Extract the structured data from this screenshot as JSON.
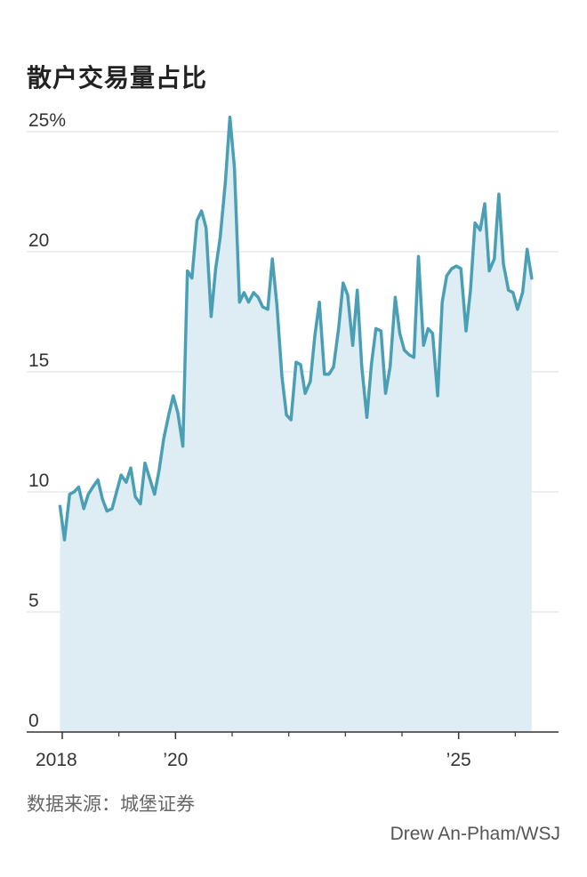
{
  "title": "散户交易量占比",
  "source": "数据来源：城堡证券",
  "credit": "Drew An-Pham/WSJ",
  "colors": {
    "line": "#4a9fb5",
    "area": "#deedf3",
    "grid": "#dddddd",
    "axis": "#333333"
  },
  "chart_data": {
    "type": "area",
    "title": "散户交易量占比",
    "xlabel": "",
    "ylabel": "",
    "ylim": [
      0,
      25
    ],
    "yticks": [
      {
        "value": 25,
        "label": "25%"
      },
      {
        "value": 20,
        "label": "20"
      },
      {
        "value": 15,
        "label": "15"
      },
      {
        "value": 10,
        "label": "10"
      },
      {
        "value": 5,
        "label": "5"
      },
      {
        "value": 0,
        "label": "0"
      }
    ],
    "xlim": [
      2018,
      2026.67
    ],
    "xticks": [
      {
        "value": 2018,
        "label": "2018"
      },
      {
        "value": 2020,
        "label": "’20"
      },
      {
        "value": 2025,
        "label": "’25"
      }
    ],
    "minor_xticks": [
      2019,
      2021,
      2022,
      2023,
      2024,
      2026
    ],
    "grid": true,
    "series": [
      {
        "values": [
          [
            2017.96,
            9.4
          ],
          [
            2018.04,
            8.0
          ],
          [
            2018.13,
            9.9
          ],
          [
            2018.21,
            10.0
          ],
          [
            2018.29,
            10.2
          ],
          [
            2018.38,
            9.3
          ],
          [
            2018.46,
            9.9
          ],
          [
            2018.54,
            10.2
          ],
          [
            2018.63,
            10.5
          ],
          [
            2018.71,
            9.7
          ],
          [
            2018.79,
            9.2
          ],
          [
            2018.88,
            9.3
          ],
          [
            2018.96,
            10.0
          ],
          [
            2019.04,
            10.7
          ],
          [
            2019.13,
            10.4
          ],
          [
            2019.21,
            11.0
          ],
          [
            2019.29,
            9.8
          ],
          [
            2019.38,
            9.5
          ],
          [
            2019.46,
            11.2
          ],
          [
            2019.54,
            10.6
          ],
          [
            2019.63,
            9.9
          ],
          [
            2019.71,
            10.9
          ],
          [
            2019.79,
            12.2
          ],
          [
            2019.88,
            13.2
          ],
          [
            2019.96,
            14.0
          ],
          [
            2020.04,
            13.3
          ],
          [
            2020.13,
            11.9
          ],
          [
            2020.21,
            19.2
          ],
          [
            2020.29,
            18.9
          ],
          [
            2020.38,
            21.3
          ],
          [
            2020.46,
            21.7
          ],
          [
            2020.54,
            21.0
          ],
          [
            2020.63,
            17.3
          ],
          [
            2020.71,
            19.3
          ],
          [
            2020.79,
            20.6
          ],
          [
            2020.88,
            22.9
          ],
          [
            2020.96,
            25.6
          ],
          [
            2021.04,
            23.5
          ],
          [
            2021.13,
            17.9
          ],
          [
            2021.21,
            18.3
          ],
          [
            2021.29,
            17.9
          ],
          [
            2021.38,
            18.3
          ],
          [
            2021.46,
            18.1
          ],
          [
            2021.54,
            17.7
          ],
          [
            2021.63,
            17.6
          ],
          [
            2021.71,
            19.7
          ],
          [
            2021.79,
            17.8
          ],
          [
            2021.88,
            14.8
          ],
          [
            2021.96,
            13.2
          ],
          [
            2022.04,
            13.0
          ],
          [
            2022.13,
            15.4
          ],
          [
            2022.21,
            15.3
          ],
          [
            2022.29,
            14.1
          ],
          [
            2022.38,
            14.6
          ],
          [
            2022.46,
            16.5
          ],
          [
            2022.54,
            17.9
          ],
          [
            2022.63,
            14.9
          ],
          [
            2022.71,
            14.9
          ],
          [
            2022.79,
            15.2
          ],
          [
            2022.88,
            16.8
          ],
          [
            2022.96,
            18.7
          ],
          [
            2023.04,
            18.2
          ],
          [
            2023.13,
            16.1
          ],
          [
            2023.21,
            18.4
          ],
          [
            2023.29,
            15.2
          ],
          [
            2023.38,
            13.1
          ],
          [
            2023.46,
            15.3
          ],
          [
            2023.54,
            16.8
          ],
          [
            2023.63,
            16.7
          ],
          [
            2023.71,
            14.1
          ],
          [
            2023.79,
            15.2
          ],
          [
            2023.88,
            18.1
          ],
          [
            2023.96,
            16.6
          ],
          [
            2024.04,
            15.9
          ],
          [
            2024.13,
            15.7
          ],
          [
            2024.21,
            15.6
          ],
          [
            2024.29,
            19.8
          ],
          [
            2024.38,
            16.1
          ],
          [
            2024.46,
            16.8
          ],
          [
            2024.54,
            16.6
          ],
          [
            2024.63,
            14.0
          ],
          [
            2024.71,
            17.9
          ],
          [
            2024.79,
            19.0
          ],
          [
            2024.88,
            19.3
          ],
          [
            2024.96,
            19.4
          ],
          [
            2025.04,
            19.3
          ],
          [
            2025.13,
            16.7
          ],
          [
            2025.21,
            18.4
          ],
          [
            2025.29,
            21.2
          ],
          [
            2025.38,
            20.9
          ],
          [
            2025.46,
            22.0
          ],
          [
            2025.54,
            19.2
          ],
          [
            2025.63,
            19.7
          ],
          [
            2025.71,
            22.4
          ],
          [
            2025.79,
            19.5
          ],
          [
            2025.88,
            18.4
          ],
          [
            2025.96,
            18.3
          ],
          [
            2026.04,
            17.6
          ],
          [
            2026.13,
            18.3
          ],
          [
            2026.21,
            20.1
          ],
          [
            2026.29,
            18.9
          ]
        ]
      }
    ]
  }
}
